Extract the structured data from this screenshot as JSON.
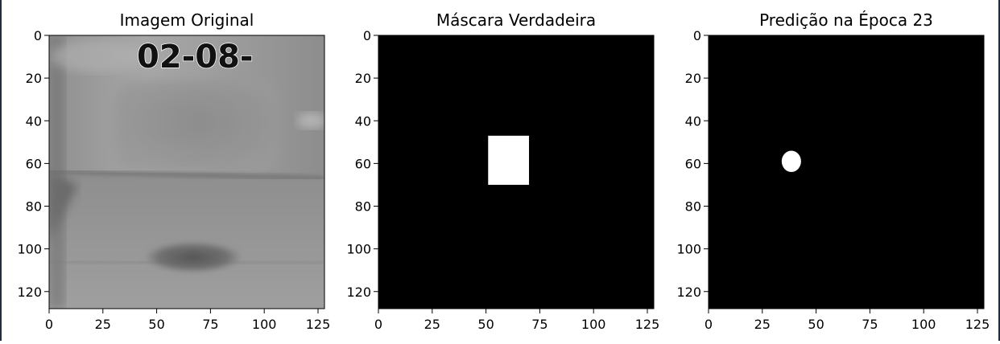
{
  "chart_data": [
    {
      "type": "heatmap",
      "title": "Imagem Original",
      "content": "grayscale-image",
      "overlay_text": "02-08-",
      "xlim": [
        0,
        128
      ],
      "ylim": [
        128,
        0
      ],
      "xticks": [
        0,
        25,
        50,
        75,
        100,
        125
      ],
      "yticks": [
        0,
        20,
        40,
        60,
        80,
        100,
        120
      ]
    },
    {
      "type": "heatmap",
      "title": "Máscara Verdadeira",
      "content": "binary-mask",
      "regions": [
        {
          "x0": 51,
          "x1": 70,
          "y0": 47,
          "y1": 70
        }
      ],
      "xlim": [
        0,
        128
      ],
      "ylim": [
        128,
        0
      ],
      "xticks": [
        0,
        25,
        50,
        75,
        100,
        125
      ],
      "yticks": [
        0,
        20,
        40,
        60,
        80,
        100,
        120
      ]
    },
    {
      "type": "heatmap",
      "title": "Predição na Época 23",
      "content": "binary-mask",
      "regions": [
        {
          "cx": 38.5,
          "cy": 59,
          "rx": 4.5,
          "ry": 5
        }
      ],
      "xlim": [
        0,
        128
      ],
      "ylim": [
        128,
        0
      ],
      "xticks": [
        0,
        25,
        50,
        75,
        100,
        125
      ],
      "yticks": [
        0,
        20,
        40,
        60,
        80,
        100,
        120
      ]
    }
  ],
  "colors": {
    "mask_bg": "#000000",
    "mask_fg": "#ffffff",
    "axis": "#000000"
  }
}
